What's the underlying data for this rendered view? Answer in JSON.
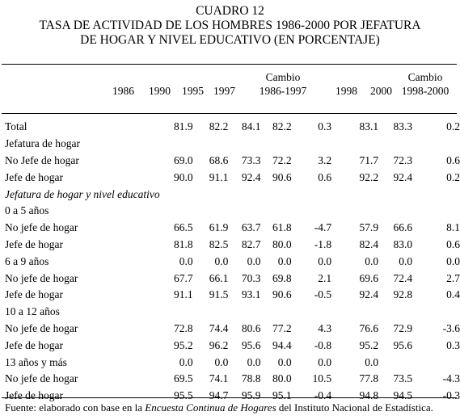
{
  "title": {
    "line1": "CUADRO 12",
    "line2": "TASA DE ACTIVIDAD DE LOS HOMBRES 1986-2000 POR JEFATURA",
    "line3": "DE HOGAR Y NIVEL EDUCATIVO (EN PORCENTAJE)"
  },
  "columns": [
    {
      "top": "",
      "bottom": "1986"
    },
    {
      "top": "",
      "bottom": "1990"
    },
    {
      "top": "",
      "bottom": "1995"
    },
    {
      "top": "",
      "bottom": "1997"
    },
    {
      "top": "Cambio",
      "bottom": "1986-1997"
    },
    {
      "top": "",
      "bottom": "1998"
    },
    {
      "top": "",
      "bottom": "2000"
    },
    {
      "top": "Cambio",
      "bottom": "1998-2000"
    }
  ],
  "rows": [
    {
      "label": "Total",
      "values": [
        "81.9",
        "82.2",
        "84.1",
        "82.2",
        "0.3",
        "83.1",
        "83.3",
        "0.2"
      ]
    },
    {
      "label": "Jefatura de hogar",
      "values": [
        "",
        "",
        "",
        "",
        "",
        "",
        "",
        ""
      ]
    },
    {
      "label": "No Jefe de hogar",
      "values": [
        "69.0",
        "68.6",
        "73.3",
        "72.2",
        "3.2",
        "71.7",
        "72.3",
        "0.6"
      ]
    },
    {
      "label": "Jefe de hogar",
      "values": [
        "90.0",
        "91.1",
        "92.4",
        "90.6",
        "0.6",
        "92.2",
        "92.4",
        "0.2"
      ]
    },
    {
      "label": "Jefatura de hogar y nivel educativo",
      "italic": true,
      "values": [
        "",
        "",
        "",
        "",
        "",
        "",
        "",
        ""
      ]
    },
    {
      "label": "0 a 5 años",
      "values": [
        "",
        "",
        "",
        "",
        "",
        "",
        "",
        ""
      ]
    },
    {
      "label": "No jefe de hogar",
      "values": [
        "66.5",
        "61.9",
        "63.7",
        "61.8",
        "-4.7",
        "57.9",
        "66.6",
        "8.1"
      ]
    },
    {
      "label": "Jefe de hogar",
      "values": [
        "81.8",
        "82.5",
        "82.7",
        "80.0",
        "-1.8",
        "82.4",
        "83.0",
        "0.6"
      ]
    },
    {
      "label": "6 a 9 años",
      "values": [
        "0.0",
        "0.0",
        "0.0",
        "0.0",
        "0.0",
        "0.0",
        "0.0",
        "0.0"
      ]
    },
    {
      "label": "No jefe de hogar",
      "values": [
        "67.7",
        "66.1",
        "70.3",
        "69.8",
        "2.1",
        "69.6",
        "72.4",
        "2.7"
      ]
    },
    {
      "label": "Jefe de hogar",
      "values": [
        "91.1",
        "91.5",
        "93.1",
        "90.6",
        "-0.5",
        "92.4",
        "92.8",
        "0.4"
      ]
    },
    {
      "label": "10 a 12 años",
      "values": [
        "",
        "",
        "",
        "",
        "",
        "",
        "",
        ""
      ]
    },
    {
      "label": "No jefe de hogar",
      "values": [
        "72.8",
        "74.4",
        "80.6",
        "77.2",
        "4.3",
        "76.6",
        "72.9",
        "-3.6"
      ]
    },
    {
      "label": "Jefe de hogar",
      "values": [
        "95.2",
        "96.2",
        "95.6",
        "94.4",
        "-0.8",
        "95.2",
        "95.6",
        "0.3"
      ]
    },
    {
      "label": "13 años y más",
      "values": [
        "0.0",
        "0.0",
        "0.0",
        "0.0",
        "0.0",
        "0.0",
        "",
        ""
      ]
    },
    {
      "label": "No jefe de hogar",
      "values": [
        "69.5",
        "74.1",
        "78.8",
        "80.0",
        "10.5",
        "77.8",
        "73.5",
        "-4.3"
      ]
    },
    {
      "label": "Jefe de hogar",
      "values": [
        "95.5",
        "94.7",
        "95.9",
        "95.1",
        "-0.4",
        "94.8",
        "94.5",
        "-0.3"
      ]
    }
  ],
  "source": {
    "prefix": "Fuente: elaborado con base en la ",
    "survey": "Encuesta Continua de Hogares",
    "suffix": " del Instituto Nacional de Estadística."
  }
}
